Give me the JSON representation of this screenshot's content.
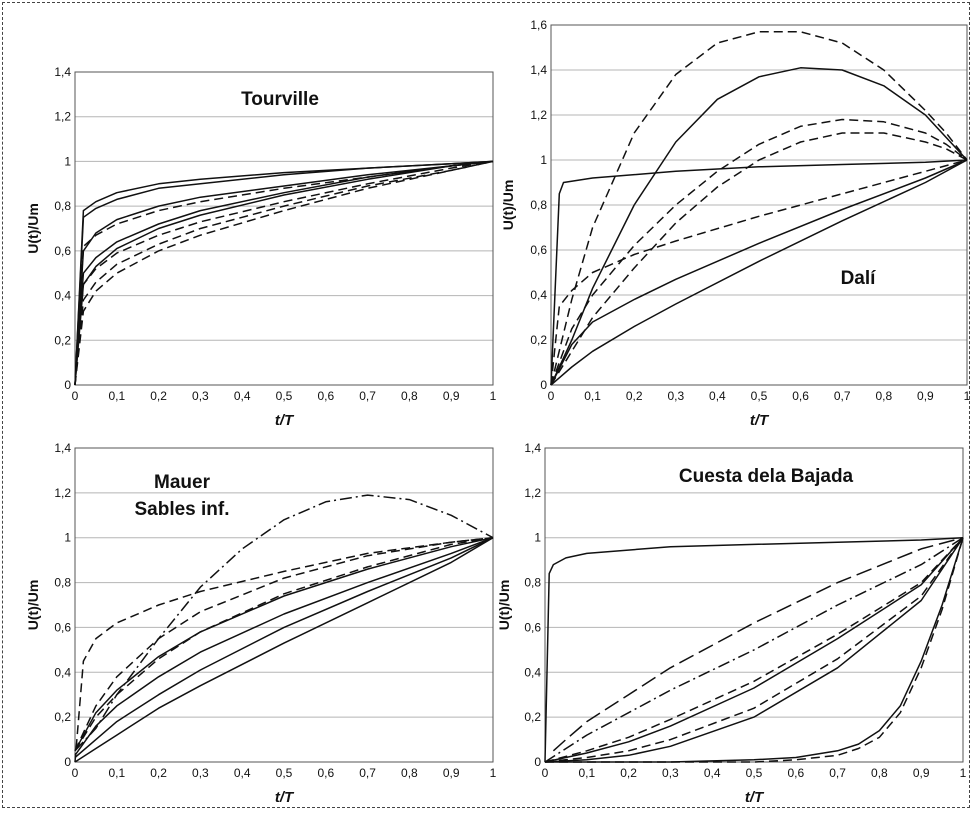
{
  "chart_data": [
    {
      "type": "line",
      "title_lines": [
        "Tourville"
      ],
      "xlabel": "t/T",
      "ylabel": "U(t)/Um",
      "xlim": [
        0,
        1
      ],
      "ylim": [
        0,
        1.4
      ],
      "xticks": [
        "0",
        "0,1",
        "0,2",
        "0,3",
        "0,4",
        "0,5",
        "0,6",
        "0,7",
        "0,8",
        "0,9",
        "1"
      ],
      "yticks": [
        "0",
        "0,2",
        "0,4",
        "0,6",
        "0,8",
        "1",
        "1,2",
        "1,4"
      ],
      "grid": true,
      "series": [
        {
          "style": "solid",
          "x": [
            0,
            0.02,
            0.05,
            0.1,
            0.2,
            0.3,
            0.5,
            0.7,
            0.9,
            1
          ],
          "y": [
            0,
            0.78,
            0.82,
            0.86,
            0.9,
            0.92,
            0.95,
            0.97,
            0.99,
            1
          ]
        },
        {
          "style": "solid",
          "x": [
            0,
            0.02,
            0.05,
            0.1,
            0.2,
            0.3,
            0.5,
            0.7,
            0.9,
            1
          ],
          "y": [
            0,
            0.75,
            0.79,
            0.83,
            0.88,
            0.9,
            0.94,
            0.97,
            0.99,
            1
          ]
        },
        {
          "style": "solid",
          "x": [
            0,
            0.02,
            0.05,
            0.1,
            0.2,
            0.3,
            0.5,
            0.7,
            0.9,
            1
          ],
          "y": [
            0,
            0.6,
            0.68,
            0.74,
            0.8,
            0.84,
            0.89,
            0.94,
            0.98,
            1
          ]
        },
        {
          "style": "solid",
          "x": [
            0,
            0.02,
            0.05,
            0.1,
            0.2,
            0.3,
            0.5,
            0.7,
            0.9,
            1
          ],
          "y": [
            0,
            0.5,
            0.57,
            0.64,
            0.72,
            0.78,
            0.86,
            0.93,
            0.98,
            1
          ]
        },
        {
          "style": "solid",
          "x": [
            0,
            0.02,
            0.05,
            0.1,
            0.2,
            0.3,
            0.5,
            0.7,
            0.9,
            1
          ],
          "y": [
            0,
            0.45,
            0.53,
            0.61,
            0.7,
            0.76,
            0.85,
            0.92,
            0.98,
            1
          ]
        },
        {
          "style": "dashed",
          "x": [
            0,
            0.02,
            0.05,
            0.1,
            0.2,
            0.3,
            0.5,
            0.7,
            0.9,
            1
          ],
          "y": [
            0,
            0.62,
            0.67,
            0.72,
            0.78,
            0.82,
            0.88,
            0.93,
            0.98,
            1
          ]
        },
        {
          "style": "dashed",
          "x": [
            0,
            0.02,
            0.05,
            0.1,
            0.2,
            0.3,
            0.5,
            0.7,
            0.9,
            1
          ],
          "y": [
            0,
            0.45,
            0.52,
            0.59,
            0.67,
            0.73,
            0.82,
            0.9,
            0.97,
            1
          ]
        },
        {
          "style": "dashed",
          "x": [
            0,
            0.02,
            0.05,
            0.1,
            0.2,
            0.3,
            0.5,
            0.7,
            0.9,
            1
          ],
          "y": [
            0,
            0.38,
            0.46,
            0.54,
            0.63,
            0.7,
            0.8,
            0.89,
            0.96,
            1
          ]
        },
        {
          "style": "dashed",
          "x": [
            0,
            0.02,
            0.05,
            0.1,
            0.2,
            0.3,
            0.5,
            0.7,
            0.9,
            1
          ],
          "y": [
            0,
            0.33,
            0.42,
            0.5,
            0.6,
            0.67,
            0.78,
            0.88,
            0.96,
            1
          ]
        }
      ]
    },
    {
      "type": "line",
      "title_lines": [
        "Dalí"
      ],
      "xlabel": "t/T",
      "ylabel": "U(t)/Um",
      "xlim": [
        0,
        1
      ],
      "ylim": [
        0,
        1.6
      ],
      "xticks": [
        "0",
        "0,1",
        "0,2",
        "0,3",
        "0,4",
        "0,5",
        "0,6",
        "0,7",
        "0,8",
        "0,9",
        "1"
      ],
      "yticks": [
        "0",
        "0,2",
        "0,4",
        "0,6",
        "0,8",
        "1",
        "1,2",
        "1,4",
        "1,6"
      ],
      "grid": true,
      "series": [
        {
          "style": "solid",
          "x": [
            0,
            0.02,
            0.03,
            0.1,
            0.3,
            0.5,
            0.7,
            0.9,
            1
          ],
          "y": [
            0,
            0.85,
            0.9,
            0.92,
            0.95,
            0.97,
            0.98,
            0.99,
            1
          ]
        },
        {
          "style": "dashed",
          "x": [
            0,
            0.05,
            0.1,
            0.2,
            0.3,
            0.4,
            0.5,
            0.6,
            0.7,
            0.8,
            0.9,
            0.95,
            1
          ],
          "y": [
            0,
            0.38,
            0.7,
            1.12,
            1.38,
            1.52,
            1.57,
            1.57,
            1.52,
            1.4,
            1.22,
            1.12,
            1
          ]
        },
        {
          "style": "solid",
          "x": [
            0,
            0.05,
            0.1,
            0.2,
            0.3,
            0.4,
            0.5,
            0.6,
            0.7,
            0.8,
            0.9,
            0.95,
            1
          ],
          "y": [
            0,
            0.2,
            0.43,
            0.8,
            1.08,
            1.27,
            1.37,
            1.41,
            1.4,
            1.33,
            1.2,
            1.1,
            1
          ]
        },
        {
          "style": "dashed",
          "x": [
            0,
            0.05,
            0.1,
            0.2,
            0.3,
            0.4,
            0.5,
            0.6,
            0.7,
            0.8,
            0.9,
            0.95,
            1
          ],
          "y": [
            0,
            0.25,
            0.4,
            0.62,
            0.8,
            0.95,
            1.07,
            1.15,
            1.18,
            1.17,
            1.12,
            1.07,
            1
          ]
        },
        {
          "style": "dashed",
          "x": [
            0,
            0.05,
            0.1,
            0.2,
            0.3,
            0.4,
            0.5,
            0.6,
            0.7,
            0.8,
            0.9,
            0.95,
            1
          ],
          "y": [
            0,
            0.15,
            0.3,
            0.52,
            0.72,
            0.88,
            1.0,
            1.08,
            1.12,
            1.12,
            1.08,
            1.05,
            1
          ]
        },
        {
          "style": "dashed",
          "x": [
            0,
            0.02,
            0.05,
            0.1,
            0.2,
            0.3,
            0.5,
            0.7,
            0.9,
            1
          ],
          "y": [
            0,
            0.35,
            0.42,
            0.5,
            0.58,
            0.64,
            0.75,
            0.85,
            0.95,
            1
          ]
        },
        {
          "style": "solid",
          "x": [
            0,
            0.05,
            0.1,
            0.2,
            0.3,
            0.5,
            0.7,
            0.9,
            1
          ],
          "y": [
            0,
            0.18,
            0.28,
            0.38,
            0.47,
            0.63,
            0.78,
            0.92,
            1
          ]
        },
        {
          "style": "solid",
          "x": [
            0,
            0.05,
            0.1,
            0.2,
            0.3,
            0.5,
            0.7,
            0.9,
            1
          ],
          "y": [
            0,
            0.08,
            0.15,
            0.26,
            0.36,
            0.55,
            0.73,
            0.9,
            1
          ]
        }
      ]
    },
    {
      "type": "line",
      "title_lines": [
        "Mauer",
        "Sables inf."
      ],
      "xlabel": "t/T",
      "ylabel": "U(t)/Um",
      "xlim": [
        0,
        1
      ],
      "ylim": [
        0,
        1.4
      ],
      "xticks": [
        "0",
        "0,1",
        "0,2",
        "0,3",
        "0,4",
        "0,5",
        "0,6",
        "0,7",
        "0,8",
        "0,9",
        "1"
      ],
      "yticks": [
        "0",
        "0,2",
        "0,4",
        "0,6",
        "0,8",
        "1",
        "1,2",
        "1,4"
      ],
      "grid": true,
      "series": [
        {
          "style": "dashdot",
          "x": [
            0,
            0.05,
            0.1,
            0.2,
            0.3,
            0.4,
            0.5,
            0.6,
            0.7,
            0.8,
            0.9,
            1
          ],
          "y": [
            0.05,
            0.15,
            0.3,
            0.55,
            0.78,
            0.95,
            1.08,
            1.16,
            1.19,
            1.17,
            1.1,
            1
          ]
        },
        {
          "style": "dashed",
          "x": [
            0,
            0.02,
            0.05,
            0.1,
            0.2,
            0.3,
            0.5,
            0.7,
            0.9,
            1
          ],
          "y": [
            0,
            0.45,
            0.55,
            0.62,
            0.7,
            0.76,
            0.85,
            0.93,
            0.98,
            1
          ]
        },
        {
          "style": "dashed",
          "x": [
            0,
            0.05,
            0.1,
            0.2,
            0.3,
            0.5,
            0.7,
            0.9,
            1
          ],
          "y": [
            0.05,
            0.25,
            0.38,
            0.55,
            0.67,
            0.82,
            0.92,
            0.98,
            1
          ]
        },
        {
          "style": "dashed",
          "x": [
            0,
            0.05,
            0.1,
            0.2,
            0.3,
            0.5,
            0.7,
            0.9,
            1
          ],
          "y": [
            0.05,
            0.2,
            0.3,
            0.46,
            0.58,
            0.75,
            0.87,
            0.97,
            1
          ]
        },
        {
          "style": "solid",
          "x": [
            0,
            0.05,
            0.1,
            0.2,
            0.3,
            0.5,
            0.7,
            0.9,
            1
          ],
          "y": [
            0.05,
            0.22,
            0.32,
            0.47,
            0.58,
            0.74,
            0.86,
            0.96,
            1
          ]
        },
        {
          "style": "solid",
          "x": [
            0,
            0.05,
            0.1,
            0.2,
            0.3,
            0.5,
            0.7,
            0.9,
            1
          ],
          "y": [
            0.03,
            0.16,
            0.25,
            0.38,
            0.49,
            0.66,
            0.8,
            0.93,
            1
          ]
        },
        {
          "style": "solid",
          "x": [
            0,
            0.05,
            0.1,
            0.2,
            0.3,
            0.5,
            0.7,
            0.9,
            1
          ],
          "y": [
            0.02,
            0.1,
            0.18,
            0.3,
            0.41,
            0.6,
            0.76,
            0.91,
            1
          ]
        },
        {
          "style": "solid",
          "x": [
            0,
            0.05,
            0.1,
            0.2,
            0.3,
            0.5,
            0.7,
            0.9,
            1
          ],
          "y": [
            0,
            0.06,
            0.12,
            0.24,
            0.34,
            0.53,
            0.71,
            0.89,
            1
          ]
        }
      ]
    },
    {
      "type": "line",
      "title_lines": [
        "Cuesta dela Bajada"
      ],
      "xlabel": "t/T",
      "ylabel": "U(t)/Um",
      "xlim": [
        0,
        1
      ],
      "ylim": [
        0,
        1.4
      ],
      "xticks": [
        "0",
        "0,1",
        "0,2",
        "0,3",
        "0,4",
        "0,5",
        "0,6",
        "0,7",
        "0,8",
        "0,9",
        "1"
      ],
      "yticks": [
        "0",
        "0,2",
        "0,4",
        "0,6",
        "0,8",
        "1",
        "1,2",
        "1,4"
      ],
      "grid": true,
      "series": [
        {
          "style": "solid",
          "x": [
            0,
            0.01,
            0.02,
            0.05,
            0.1,
            0.3,
            0.5,
            0.7,
            0.9,
            1
          ],
          "y": [
            0,
            0.84,
            0.88,
            0.91,
            0.93,
            0.96,
            0.97,
            0.98,
            0.99,
            1
          ]
        },
        {
          "style": "longdash",
          "x": [
            0.02,
            0.05,
            0.1,
            0.2,
            0.3,
            0.5,
            0.7,
            0.9,
            1
          ],
          "y": [
            0.05,
            0.1,
            0.18,
            0.3,
            0.42,
            0.62,
            0.8,
            0.95,
            1
          ]
        },
        {
          "style": "dashdot",
          "x": [
            0,
            0.1,
            0.2,
            0.3,
            0.5,
            0.7,
            0.9,
            1
          ],
          "y": [
            0,
            0.12,
            0.22,
            0.32,
            0.5,
            0.7,
            0.88,
            1
          ]
        },
        {
          "style": "dashed",
          "x": [
            0,
            0.1,
            0.2,
            0.3,
            0.5,
            0.7,
            0.9,
            1
          ],
          "y": [
            0,
            0.05,
            0.11,
            0.19,
            0.36,
            0.57,
            0.8,
            1
          ]
        },
        {
          "style": "solid",
          "x": [
            0,
            0.1,
            0.2,
            0.3,
            0.5,
            0.7,
            0.9,
            1
          ],
          "y": [
            0,
            0.04,
            0.09,
            0.16,
            0.33,
            0.55,
            0.79,
            1
          ]
        },
        {
          "style": "dashed",
          "x": [
            0,
            0.1,
            0.2,
            0.3,
            0.5,
            0.7,
            0.9,
            1
          ],
          "y": [
            0,
            0.02,
            0.05,
            0.1,
            0.24,
            0.46,
            0.74,
            1
          ]
        },
        {
          "style": "solid",
          "x": [
            0,
            0.1,
            0.2,
            0.3,
            0.5,
            0.7,
            0.9,
            1
          ],
          "y": [
            0,
            0.01,
            0.03,
            0.07,
            0.2,
            0.42,
            0.72,
            1
          ]
        },
        {
          "style": "solid",
          "x": [
            0,
            0.3,
            0.5,
            0.6,
            0.7,
            0.75,
            0.8,
            0.85,
            0.9,
            0.95,
            1
          ],
          "y": [
            0,
            0,
            0.01,
            0.02,
            0.05,
            0.08,
            0.14,
            0.25,
            0.45,
            0.7,
            1
          ]
        },
        {
          "style": "dashed",
          "x": [
            0,
            0.3,
            0.5,
            0.6,
            0.7,
            0.75,
            0.8,
            0.85,
            0.9,
            0.95,
            1
          ],
          "y": [
            0,
            0,
            0,
            0.01,
            0.03,
            0.06,
            0.11,
            0.22,
            0.42,
            0.68,
            1
          ]
        }
      ]
    }
  ]
}
